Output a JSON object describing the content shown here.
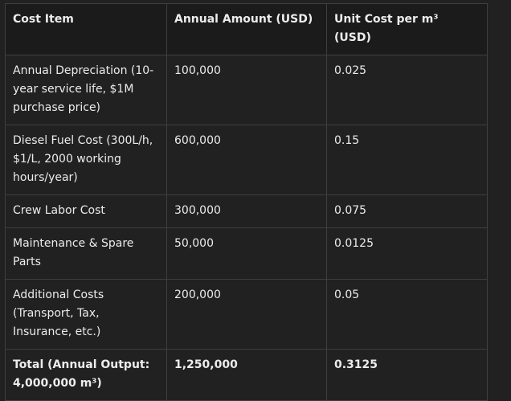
{
  "table": {
    "header": [
      "Cost Item",
      "Annual Amount (USD)",
      "Unit Cost per m³ (USD)"
    ],
    "rows": [
      [
        "Annual Depreciation (10-year service life, $1M purchase price)",
        "100,000",
        "0.025"
      ],
      [
        "Diesel Fuel Cost (300L/h, $1/L, 2000 working hours/year)",
        "600,000",
        "0.15"
      ],
      [
        "Crew Labor Cost",
        "300,000",
        "0.075"
      ],
      [
        "Maintenance & Spare Parts",
        "50,000",
        "0.0125"
      ],
      [
        "Additional Costs (Transport, Tax, Insurance, etc.)",
        "200,000",
        "0.05"
      ],
      [
        "Total (Annual Output: 4,000,000 m³)",
        "1,250,000",
        "0.3125"
      ]
    ]
  }
}
